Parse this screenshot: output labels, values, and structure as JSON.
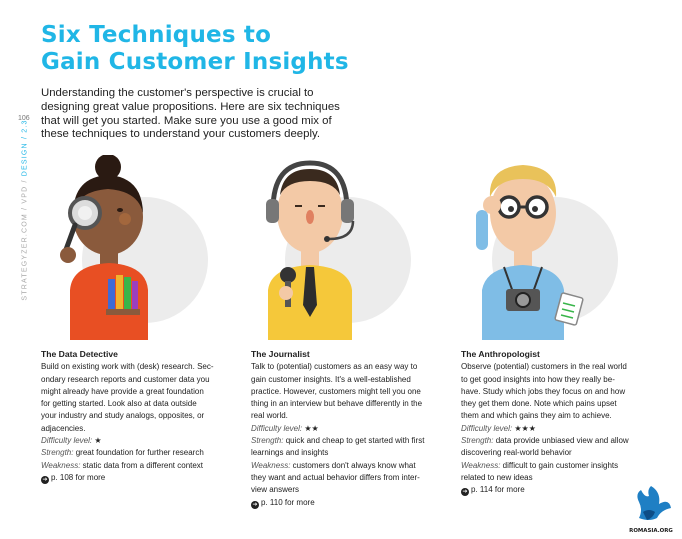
{
  "title": {
    "line1": "Six Techniques to",
    "line2": "Gain Customer Insights"
  },
  "intro": {
    "lines": [
      "Understanding the customer's perspective is crucial to",
      "designing great value propositions. Here are six techniques",
      "that will get you started. Make sure you use a good mix of",
      "these techniques to understand your customers deeply."
    ]
  },
  "page_number": "106",
  "side_label": {
    "prefix": "STRATEGYZER.COM / VPD / ",
    "accent": "DESIGN / 2.3"
  },
  "columns": [
    {
      "heading": "The Data Detective",
      "body": [
        "Build on existing work with (desk) research. Sec-",
        "ondary research reports and customer data you",
        "might already have provide a great foundation",
        "for getting started. Look also at data outside",
        "your industry and study analogs, opposites, or",
        "adjacencies."
      ],
      "difficulty_label": "Difficulty level:",
      "difficulty_value": "★",
      "strength_label": "Strength:",
      "strength_lines": [
        "great foundation for further research"
      ],
      "weakness_label": "Weakness:",
      "weakness_lines": [
        "static data from a different context"
      ],
      "more": "p. 108 for more"
    },
    {
      "heading": "The Journalist",
      "body": [
        "Talk to (potential) customers as an easy way to",
        "gain customer insights. It's a well-established",
        "practice. However, customers might tell you one",
        "thing in an interview but behave differently in the",
        "real world."
      ],
      "difficulty_label": "Difficulty level:",
      "difficulty_value": "★★",
      "strength_label": "Strength:",
      "strength_lines": [
        "quick and cheap to get started with first",
        "learnings and insights"
      ],
      "weakness_label": "Weakness:",
      "weakness_lines": [
        "customers don't always know what",
        "they want and actual behavior differs from inter-",
        "view answers"
      ],
      "more": "p. 110 for more"
    },
    {
      "heading": "The Anthropologist",
      "body": [
        "Observe (potential) customers in the real world",
        "to get good insights into how they really be-",
        "have. Study which jobs they focus on and how",
        "they get them done. Note which pains upset",
        "them and which gains they aim to achieve."
      ],
      "difficulty_label": "Difficulty level:",
      "difficulty_value": "★★★",
      "strength_label": "Strength:",
      "strength_lines": [
        "data provide unbiased view and allow",
        "discovering real-world behavior"
      ],
      "weakness_label": "Weakness:",
      "weakness_lines": [
        "difficult to gain customer insights",
        "related to new ideas"
      ],
      "more": "p. 114 for more"
    }
  ],
  "logo_text": "ROMASIA.ORG",
  "colors": {
    "accent": "#20b6e6",
    "circle": "#ececec"
  }
}
